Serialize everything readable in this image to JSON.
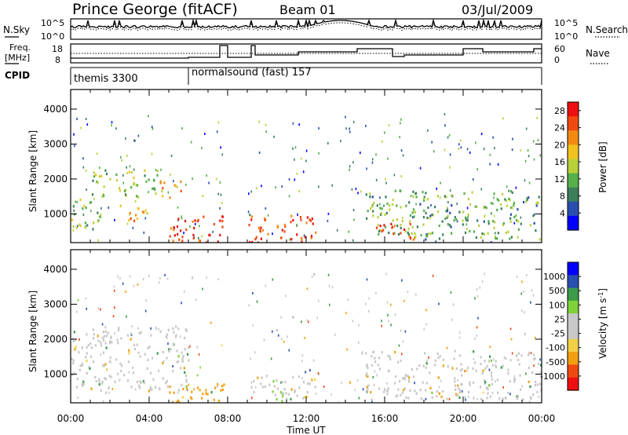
{
  "header": {
    "station": "Prince George (fitACF)",
    "beam": "Beam 01",
    "date": "03/Jul/2009"
  },
  "noise_panel": {
    "left_label": "N.Sky",
    "left_top_tick": "10^5",
    "left_bottom_tick": "10^0",
    "right_label": "N.Search",
    "right_top_tick": "10^5",
    "right_bottom_tick": "10^0"
  },
  "freq_panel": {
    "left_label_line1": "Freq.",
    "left_label_line2": "[MHz]",
    "left_top_tick": "18",
    "left_bottom_tick": "8",
    "right_label": "Nave",
    "right_top_tick": "60",
    "right_bottom_tick": "0"
  },
  "cpid_panel": {
    "label": "CPID",
    "modes": [
      {
        "name": "themis 3300",
        "start_hour": 0
      },
      {
        "name": "normalsound (fast) 157",
        "start_hour": 6
      }
    ]
  },
  "colors": {
    "power_scale": [
      "#0000ff",
      "#2a4fb0",
      "#3c7f5a",
      "#55b04a",
      "#b8d13a",
      "#f2c21f",
      "#f28a12",
      "#f04a10",
      "#ee1010"
    ],
    "velocity_scale": [
      "#ee1010",
      "#f04a10",
      "#f2a012",
      "#f2d046",
      "#c8c8c8",
      "#c8c8c8",
      "#7fd23a",
      "#3c9a4a",
      "#2a4fb0",
      "#0000ff"
    ]
  },
  "chart_data": [
    {
      "type": "heatmap",
      "title": "Power",
      "xlabel": "Time UT",
      "ylabel": "Slant Range [km]",
      "x_ticks": [
        "00:00",
        "04:00",
        "08:00",
        "12:00",
        "16:00",
        "20:00",
        "00:00"
      ],
      "xlim_hours": [
        0,
        24
      ],
      "y_ticks": [
        "1000",
        "2000",
        "3000",
        "4000"
      ],
      "ylim": [
        180,
        4560
      ],
      "colorbar_label": "Power [dB]",
      "colorbar_ticks": [
        "4",
        "8",
        "12",
        "16",
        "20",
        "24",
        "28"
      ],
      "colorbar_range": [
        0,
        30
      ],
      "regions": [
        {
          "t": [
            0.0,
            1.5
          ],
          "r": [
            600,
            1500
          ],
          "value": 14
        },
        {
          "t": [
            1.0,
            4.5
          ],
          "r": [
            1500,
            2300
          ],
          "value": 13
        },
        {
          "t": [
            2.5,
            4.0
          ],
          "r": [
            800,
            1300
          ],
          "value": 20
        },
        {
          "t": [
            4.5,
            5.8
          ],
          "r": [
            1500,
            2000
          ],
          "value": 22
        },
        {
          "t": [
            5.0,
            7.8
          ],
          "r": [
            200,
            1000
          ],
          "value": 27
        },
        {
          "t": [
            9.0,
            12.5
          ],
          "r": [
            200,
            1000
          ],
          "value": 27
        },
        {
          "t": [
            15.0,
            24.0
          ],
          "r": [
            300,
            1700
          ],
          "value": 11
        },
        {
          "t": [
            15.5,
            17.5
          ],
          "r": [
            300,
            800
          ],
          "value": 26
        }
      ]
    },
    {
      "type": "heatmap",
      "title": "Velocity",
      "xlabel": "Time UT",
      "ylabel": "Slant Range [km]",
      "x_ticks": [
        "00:00",
        "04:00",
        "08:00",
        "12:00",
        "16:00",
        "20:00",
        "00:00"
      ],
      "xlim_hours": [
        0,
        24
      ],
      "y_ticks": [
        "1000",
        "2000",
        "3000",
        "4000"
      ],
      "ylim": [
        180,
        4560
      ],
      "colorbar_label": "Velocity [m s^-1]",
      "colorbar_ticks": [
        "1000",
        "500",
        "100",
        "25",
        "-25",
        "-100",
        "-500",
        "-1000"
      ],
      "regions": [
        {
          "t": [
            0.0,
            6.0
          ],
          "r": [
            500,
            2400
          ],
          "value": 0
        },
        {
          "t": [
            5.0,
            7.8
          ],
          "r": [
            200,
            800
          ],
          "value": -100
        },
        {
          "t": [
            9.0,
            12.5
          ],
          "r": [
            300,
            1000
          ],
          "value": 0
        },
        {
          "t": [
            10.0,
            10.8
          ],
          "r": [
            250,
            600
          ],
          "value": 100
        },
        {
          "t": [
            15.0,
            24.0
          ],
          "r": [
            300,
            1700
          ],
          "value": 0
        }
      ]
    }
  ]
}
